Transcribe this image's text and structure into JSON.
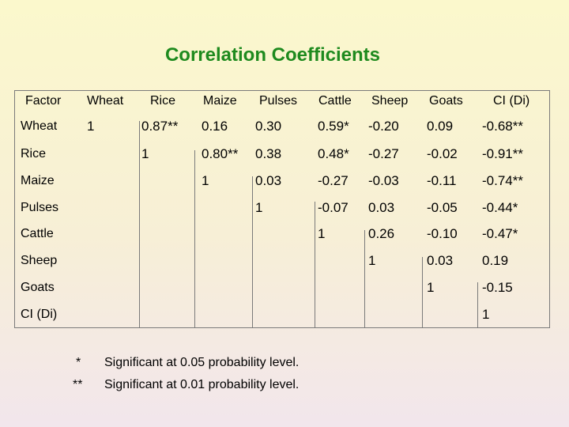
{
  "title": "Correlation Coefficients",
  "table": {
    "columns": [
      "Factor",
      "Wheat",
      "Rice",
      "Maize",
      "Pulses",
      "Cattle",
      "Sheep",
      "Goats",
      "CI (Di)"
    ],
    "rows": [
      {
        "label": "Wheat",
        "values": [
          "1",
          "0.87**",
          "0.16",
          "0.30",
          "0.59*",
          "-0.20",
          "0.09",
          "-0.68**"
        ]
      },
      {
        "label": "Rice",
        "values": [
          "",
          "1",
          "0.80**",
          "0.38",
          "0.48*",
          "-0.27",
          "-0.02",
          "-0.91**"
        ]
      },
      {
        "label": "Maize",
        "values": [
          "",
          "",
          "1",
          "0.03",
          "-0.27",
          "-0.03",
          "-0.11",
          "-0.74**"
        ]
      },
      {
        "label": "Pulses",
        "values": [
          "",
          "",
          "",
          "1",
          "-0.07",
          "0.03",
          "-0.05",
          "-0.44*"
        ]
      },
      {
        "label": "Cattle",
        "values": [
          "",
          "",
          "",
          "",
          "1",
          "0.26",
          "-0.10",
          "-0.47*"
        ]
      },
      {
        "label": "Sheep",
        "values": [
          "",
          "",
          "",
          "",
          "",
          "1",
          "0.03",
          "0.19"
        ]
      },
      {
        "label": "Goats",
        "values": [
          "",
          "",
          "",
          "",
          "",
          "",
          "1",
          "-0.15"
        ]
      },
      {
        "label": "CI (Di)",
        "values": [
          "",
          "",
          "",
          "",
          "",
          "",
          "",
          "1"
        ]
      }
    ]
  },
  "footnotes": [
    {
      "symbol": "*",
      "text": "Significant at 0.05 probability level."
    },
    {
      "symbol": "**",
      "text": "Significant at 0.01 probability level."
    }
  ]
}
